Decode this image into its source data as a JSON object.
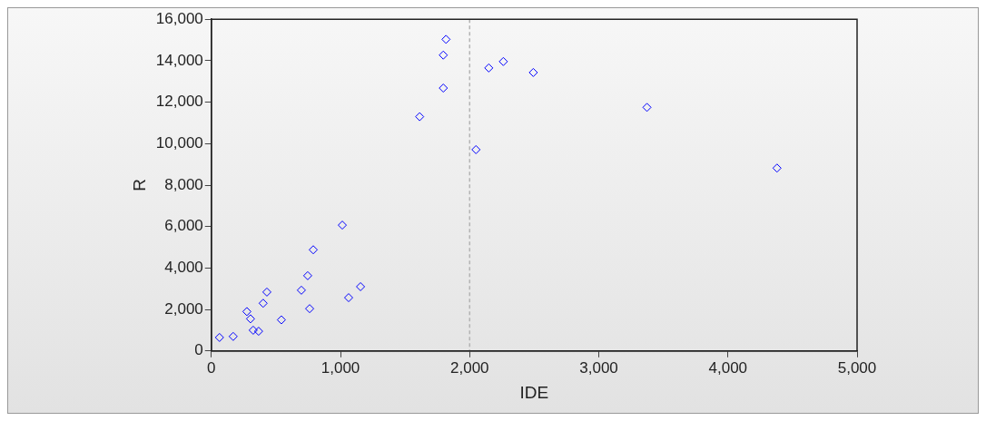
{
  "chart_data": {
    "type": "scatter",
    "xlabel": "IDE",
    "ylabel": "R",
    "x": [
      63,
      169,
      275,
      303,
      324,
      366,
      401,
      430,
      542,
      697,
      746,
      761,
      789,
      1014,
      1063,
      1155,
      1613,
      1796,
      1796,
      1817,
      2049,
      2148,
      2261,
      2493,
      3373,
      4380
    ],
    "series": [
      {
        "color": "#0000ff",
        "values": [
          650,
          700,
          1900,
          1550,
          1000,
          950,
          2300,
          2840,
          1500,
          2930,
          3630,
          2040,
          4880,
          6070,
          2570,
          3100,
          11300,
          12680,
          14270,
          15030,
          9710,
          13650,
          13960,
          13430,
          11750,
          8820
        ]
      }
    ],
    "xlim": [
      0,
      5000
    ],
    "xticks": [
      0,
      {
        "value": 1000,
        "label": "1,000"
      },
      {
        "value": 2000,
        "label": "2,000"
      },
      {
        "value": 3000,
        "label": "3,000"
      },
      {
        "value": 4000,
        "label": "4,000"
      },
      {
        "value": 5000,
        "label": "5,000"
      }
    ],
    "ylim": [
      0,
      16000
    ],
    "yticks": [
      0,
      {
        "value": 2000,
        "label": "2,000"
      },
      {
        "value": 4000,
        "label": "4,000"
      },
      {
        "value": 6000,
        "label": "6,000"
      },
      {
        "value": 8000,
        "label": "8,000"
      },
      {
        "value": 10000,
        "label": "10,000"
      },
      {
        "value": 12000,
        "label": "12,000"
      },
      {
        "value": 14000,
        "label": "14,000"
      },
      {
        "value": 16000,
        "label": "16,000"
      }
    ],
    "ref_lines": [
      {
        "axis": "x",
        "value": 2000,
        "color": "#b4b4b4",
        "line_style": "dashed"
      }
    ],
    "grid": false,
    "legend": false,
    "marker": "diamond"
  }
}
